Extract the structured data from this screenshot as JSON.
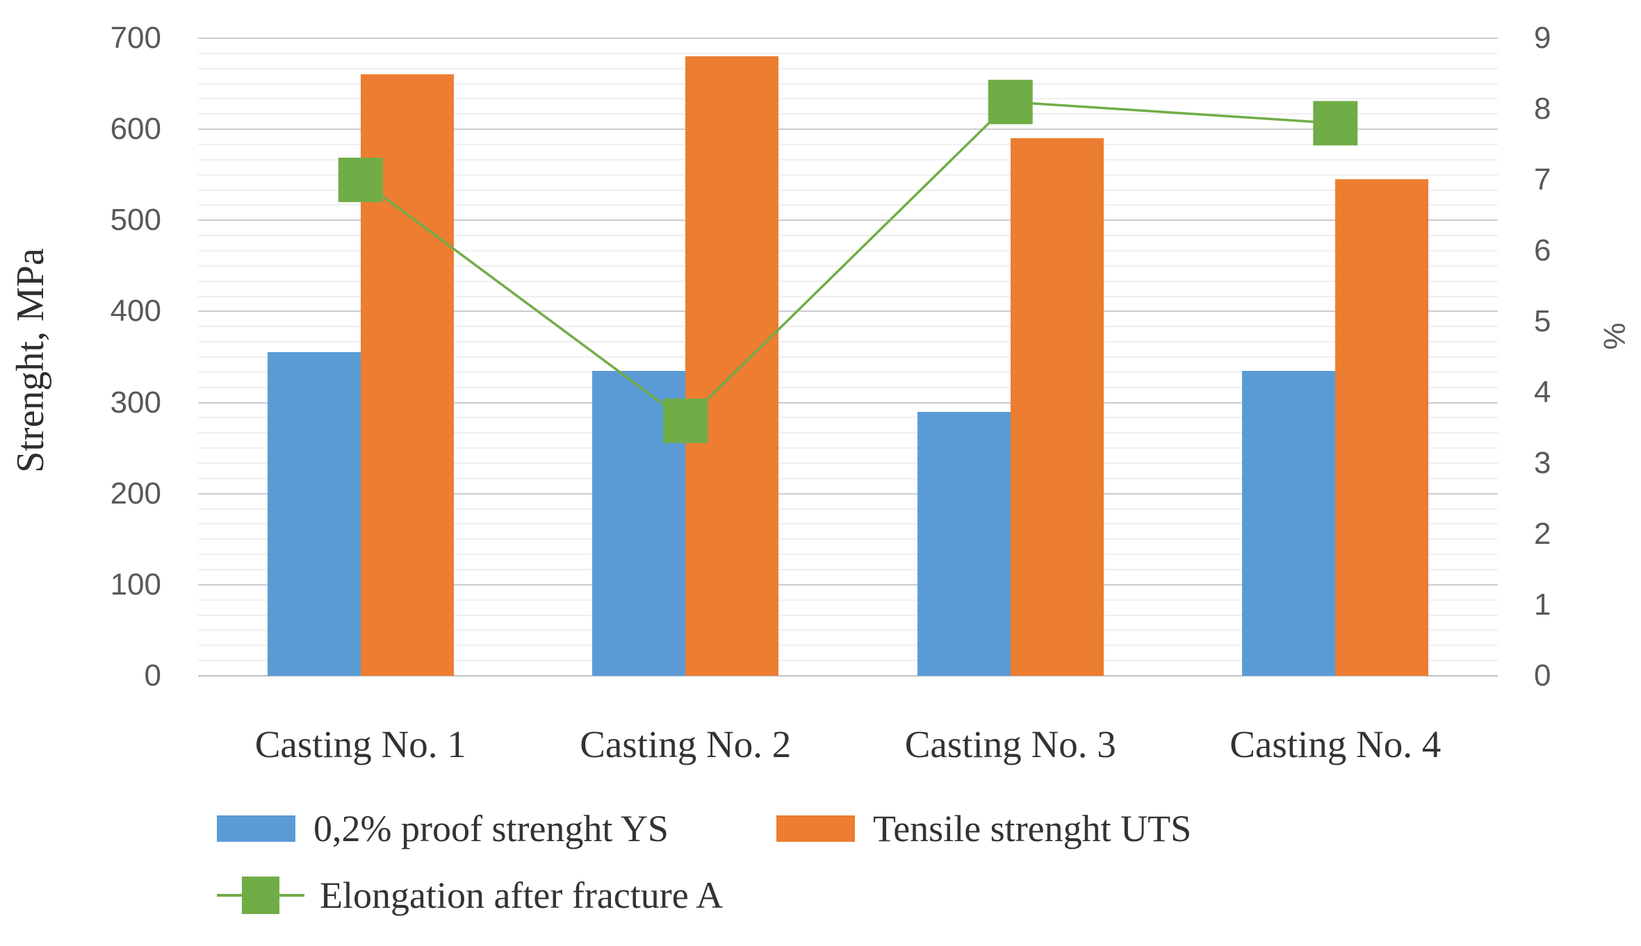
{
  "chart_data": {
    "type": "bar",
    "subtype": "combo-bar-line-dual-axis",
    "title": "",
    "categories": [
      "Casting No. 1",
      "Casting No. 2",
      "Casting No. 3",
      "Casting No. 4"
    ],
    "series": [
      {
        "name": "0,2% proof strenght YS",
        "render": "bar",
        "axis": "primary",
        "color": "#5B9BD5",
        "values": [
          355,
          335,
          290,
          335
        ]
      },
      {
        "name": "Tensile strenght UTS",
        "render": "bar",
        "axis": "primary",
        "color": "#ED7D31",
        "values": [
          660,
          680,
          590,
          545
        ]
      },
      {
        "name": "Elongation after fracture A",
        "render": "line",
        "axis": "secondary",
        "color": "#70AD47",
        "marker": "square",
        "values": [
          7.0,
          3.6,
          8.1,
          7.8
        ]
      }
    ],
    "primary_axis": {
      "label": "Strenght, MPa",
      "min": 0,
      "max": 700,
      "step": 100,
      "ticks": [
        "0",
        "100",
        "200",
        "300",
        "400",
        "500",
        "600",
        "700"
      ]
    },
    "secondary_axis": {
      "label": "%",
      "min": 0,
      "max": 9,
      "step": 1,
      "ticks": [
        "0",
        "1",
        "2",
        "3",
        "4",
        "5",
        "6",
        "7",
        "8",
        "9"
      ]
    },
    "grid": {
      "major": true,
      "minor": true,
      "minor_per_major": 5
    },
    "legend_position": "bottom-left",
    "colors": {
      "grid_major": "#c9cdd0",
      "grid_minor": "#efeff0",
      "baseline": "#bdc1c5",
      "tick_text": "#595959",
      "label_text": "#333333",
      "background": "#ffffff"
    }
  }
}
